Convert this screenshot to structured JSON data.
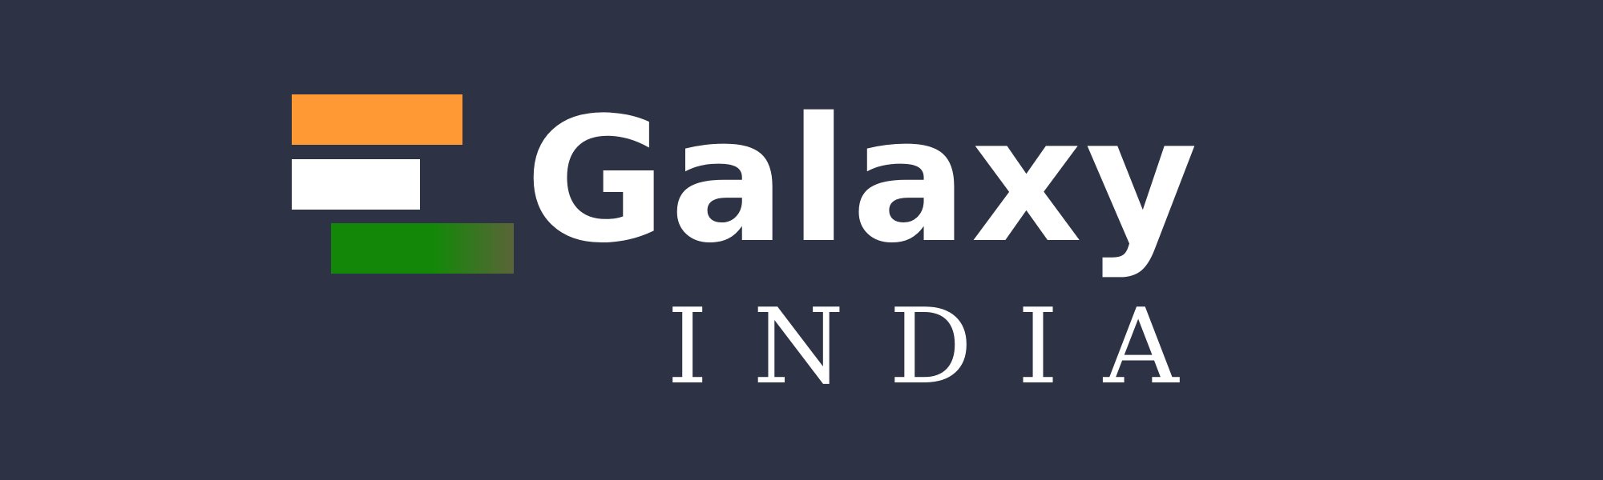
{
  "brand": {
    "name": "Galaxy",
    "region": "INDIA"
  },
  "colors": {
    "background": "#2D3244",
    "saffron": "#FF9933",
    "white": "#FFFFFF",
    "green": "#138808",
    "green_fade": "#5A6438",
    "text": "#FFFFFF"
  }
}
